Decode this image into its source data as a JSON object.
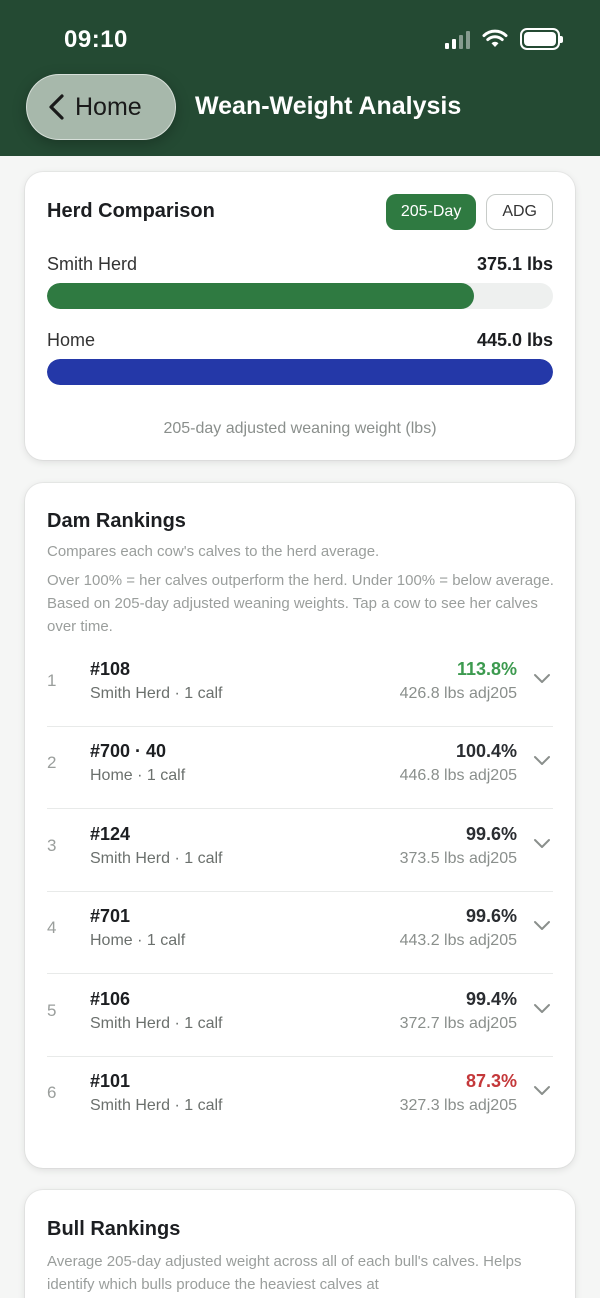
{
  "status_bar": {
    "time": "09:10"
  },
  "nav": {
    "back_label": "Home",
    "title": "Wean-Weight Analysis"
  },
  "herd_comparison": {
    "title": "Herd Comparison",
    "toggle": {
      "options": [
        "205-Day",
        "ADG"
      ],
      "selected": "205-Day"
    },
    "bars": [
      {
        "label": "Smith Herd",
        "value_text": "375.1 lbs",
        "fraction": 0.843,
        "color": "#2f7a41"
      },
      {
        "label": "Home",
        "value_text": "445.0 lbs",
        "fraction": 1.0,
        "color": "#2438a8"
      }
    ],
    "caption": "205-day adjusted weaning weight (lbs)"
  },
  "dam_rankings": {
    "title": "Dam Rankings",
    "desc1": "Compares each cow's calves to the herd average.",
    "desc2": "Over 100% = her calves outperform the herd. Under 100% = below average. Based on 205-day adjusted weaning weights. Tap a cow to see her calves over time.",
    "rows": [
      {
        "rank": "1",
        "id": "#108",
        "sub": "Smith Herd · 1 calf",
        "pct": "113.8%",
        "adj": "426.8 lbs adj205",
        "pct_color": "#3c9a4f"
      },
      {
        "rank": "2",
        "id": "#700 · 40",
        "sub": "Home · 1 calf",
        "pct": "100.4%",
        "adj": "446.8 lbs adj205",
        "pct_color": "#2a2d31"
      },
      {
        "rank": "3",
        "id": "#124",
        "sub": "Smith Herd · 1 calf",
        "pct": "99.6%",
        "adj": "373.5 lbs adj205",
        "pct_color": "#2a2d31"
      },
      {
        "rank": "4",
        "id": "#701",
        "sub": "Home · 1 calf",
        "pct": "99.6%",
        "adj": "443.2 lbs adj205",
        "pct_color": "#2a2d31"
      },
      {
        "rank": "5",
        "id": "#106",
        "sub": "Smith Herd · 1 calf",
        "pct": "99.4%",
        "adj": "372.7 lbs adj205",
        "pct_color": "#2a2d31"
      },
      {
        "rank": "6",
        "id": "#101",
        "sub": "Smith Herd · 1 calf",
        "pct": "87.3%",
        "adj": "327.3 lbs adj205",
        "pct_color": "#c4383a"
      }
    ]
  },
  "bull_rankings": {
    "title": "Bull Rankings",
    "desc": "Average 205-day adjusted weight across all of each bull's calves. Helps identify which bulls produce the heaviest calves at"
  },
  "colors": {
    "header_bg": "#244a33",
    "accent_green": "#2f7a41",
    "home_blue": "#2438a8"
  }
}
